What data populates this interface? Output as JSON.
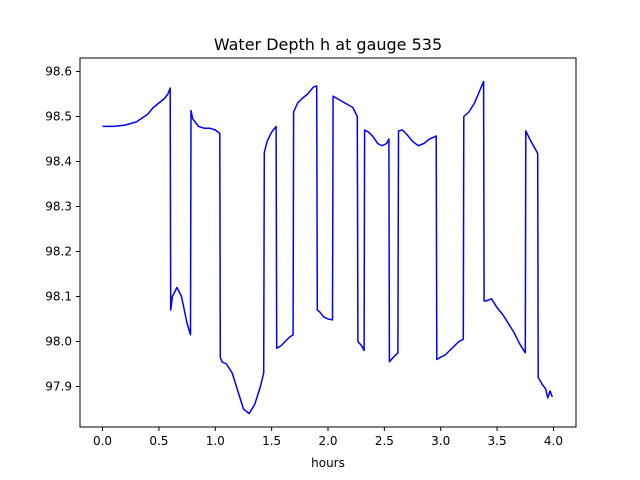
{
  "chart_data": {
    "type": "line",
    "title": "Water Depth h at gauge 535",
    "xlabel": "hours",
    "ylabel": "",
    "xlim": [
      -0.2,
      4.2
    ],
    "ylim": [
      97.81,
      98.63
    ],
    "x_ticks": [
      0.0,
      0.5,
      1.0,
      1.5,
      2.0,
      2.5,
      3.0,
      3.5,
      4.0
    ],
    "x_tick_labels": [
      "0.0",
      "0.5",
      "1.0",
      "1.5",
      "2.0",
      "2.5",
      "3.0",
      "3.5",
      "4.0"
    ],
    "y_ticks": [
      97.9,
      98.0,
      98.1,
      98.2,
      98.3,
      98.4,
      98.5,
      98.6
    ],
    "y_tick_labels": [
      "97.9",
      "98.0",
      "98.1",
      "98.2",
      "98.3",
      "98.4",
      "98.5",
      "98.6"
    ],
    "grid": false,
    "series": [
      {
        "color": "#0000ff",
        "x": [
          0.0,
          0.1,
          0.2,
          0.3,
          0.4,
          0.45,
          0.5,
          0.55,
          0.58,
          0.6,
          0.605,
          0.62,
          0.66,
          0.7,
          0.75,
          0.78,
          0.785,
          0.8,
          0.85,
          0.9,
          0.95,
          1.0,
          1.04,
          1.045,
          1.06,
          1.1,
          1.15,
          1.2,
          1.25,
          1.3,
          1.35,
          1.4,
          1.43,
          1.435,
          1.46,
          1.5,
          1.54,
          1.545,
          1.58,
          1.62,
          1.66,
          1.69,
          1.695,
          1.73,
          1.77,
          1.82,
          1.87,
          1.9,
          1.905,
          1.93,
          1.96,
          2.0,
          2.04,
          2.045,
          2.08,
          2.15,
          2.22,
          2.26,
          2.265,
          2.3,
          2.32,
          2.325,
          2.36,
          2.4,
          2.44,
          2.48,
          2.52,
          2.54,
          2.545,
          2.58,
          2.62,
          2.625,
          2.66,
          2.7,
          2.75,
          2.8,
          2.85,
          2.9,
          2.95,
          2.96,
          2.965,
          3.0,
          3.04,
          3.08,
          3.12,
          3.16,
          3.2,
          3.205,
          3.25,
          3.3,
          3.35,
          3.38,
          3.385,
          3.4,
          3.45,
          3.5,
          3.55,
          3.6,
          3.65,
          3.7,
          3.75,
          3.755,
          3.8,
          3.86,
          3.865,
          3.9,
          3.93,
          3.95,
          3.97,
          3.99
        ],
        "y": [
          98.478,
          98.478,
          98.481,
          98.488,
          98.505,
          98.52,
          98.53,
          98.54,
          98.55,
          98.563,
          98.07,
          98.1,
          98.12,
          98.1,
          98.04,
          98.015,
          98.513,
          98.495,
          98.478,
          98.474,
          98.474,
          98.47,
          98.462,
          97.965,
          97.955,
          97.95,
          97.93,
          97.89,
          97.85,
          97.84,
          97.86,
          97.9,
          97.93,
          98.42,
          98.445,
          98.465,
          98.478,
          97.985,
          97.99,
          98.0,
          98.01,
          98.015,
          98.51,
          98.53,
          98.54,
          98.55,
          98.565,
          98.568,
          98.07,
          98.065,
          98.055,
          98.05,
          98.048,
          98.545,
          98.54,
          98.53,
          98.52,
          98.5,
          98.0,
          97.99,
          97.98,
          98.47,
          98.465,
          98.455,
          98.44,
          98.435,
          98.44,
          98.45,
          97.955,
          97.965,
          97.975,
          98.468,
          98.47,
          98.46,
          98.445,
          98.435,
          98.44,
          98.45,
          98.455,
          98.457,
          97.96,
          97.965,
          97.97,
          97.98,
          97.99,
          98.0,
          98.005,
          98.5,
          98.51,
          98.53,
          98.56,
          98.578,
          98.09,
          98.09,
          98.095,
          98.075,
          98.06,
          98.04,
          98.02,
          97.995,
          97.975,
          98.468,
          98.445,
          98.418,
          97.92,
          97.905,
          97.895,
          97.875,
          97.89,
          97.877
        ]
      }
    ]
  }
}
